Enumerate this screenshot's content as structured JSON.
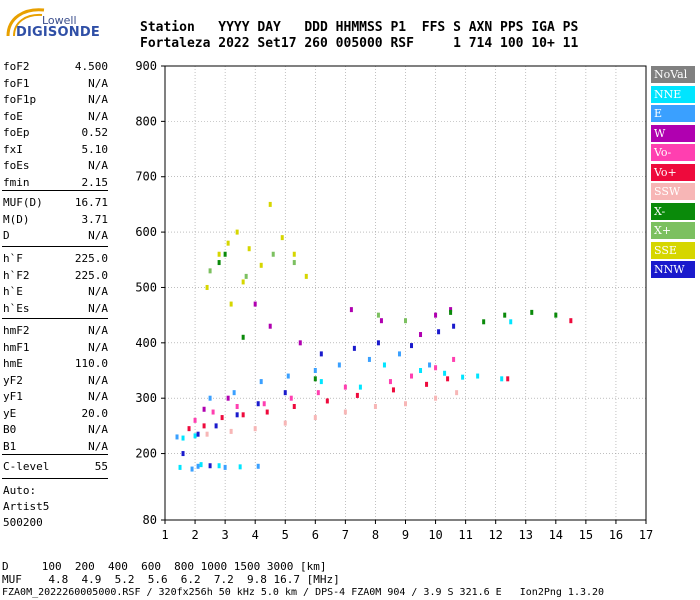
{
  "logo": {
    "line1": "Lowell",
    "line2": "DIGISONDE"
  },
  "header": {
    "line1": "Station   YYYY DAY   DDD HHMMSS P1  FFS S AXN PPS IGA PS",
    "line2": "Fortaleza 2022 Set17 260 005000 RSF     1 714 100 10+ 11"
  },
  "params_a": [
    {
      "label": "foF2",
      "value": "4.500"
    },
    {
      "label": "foF1",
      "value": "N/A"
    },
    {
      "label": "foF1p",
      "value": "N/A"
    },
    {
      "label": "foE",
      "value": "N/A"
    },
    {
      "label": "foEp",
      "value": "0.52"
    },
    {
      "label": "fxI",
      "value": "5.10"
    },
    {
      "label": "foEs",
      "value": "N/A"
    },
    {
      "label": "fmin",
      "value": "2.15"
    }
  ],
  "params_b": [
    {
      "label": "MUF(D)",
      "value": "16.71"
    },
    {
      "label": "M(D)",
      "value": "3.71"
    },
    {
      "label": "D",
      "value": "N/A"
    }
  ],
  "params_c": [
    {
      "label": "h`F",
      "value": "225.0"
    },
    {
      "label": "h`F2",
      "value": "225.0"
    },
    {
      "label": "h`E",
      "value": "N/A"
    },
    {
      "label": "h`Es",
      "value": "N/A"
    }
  ],
  "params_d": [
    {
      "label": "hmF2",
      "value": "N/A"
    },
    {
      "label": "hmF1",
      "value": "N/A"
    },
    {
      "label": "hmE",
      "value": "110.0"
    },
    {
      "label": "yF2",
      "value": "N/A"
    },
    {
      "label": "yF1",
      "value": "N/A"
    },
    {
      "label": "yE",
      "value": "20.0"
    },
    {
      "label": "B0",
      "value": "N/A"
    },
    {
      "label": "B1",
      "value": "N/A"
    }
  ],
  "params_e": [
    {
      "label": "C-level",
      "value": "55"
    }
  ],
  "auto": {
    "line1": "Auto:",
    "line2": "Artist5",
    "line3": "500200"
  },
  "legend": [
    {
      "label": "NoVal",
      "color": "#808080"
    },
    {
      "label": "NNE",
      "color": "#00e5ff"
    },
    {
      "label": "E",
      "color": "#3aa0ff"
    },
    {
      "label": "W",
      "color": "#b000b0"
    },
    {
      "label": "Vo-",
      "color": "#ff3fb0"
    },
    {
      "label": "Vo+",
      "color": "#ee0a3c"
    },
    {
      "label": "SSW",
      "color": "#f7b6b6"
    },
    {
      "label": "X-",
      "color": "#0a8a0a"
    },
    {
      "label": "X+",
      "color": "#7cc060"
    },
    {
      "label": "SSE",
      "color": "#d6d600"
    },
    {
      "label": "NNW",
      "color": "#1a1acc"
    }
  ],
  "footer": {
    "line1": "D     100  200  400  600  800 1000 1500 3000 [km]",
    "line2": "MUF    4.8  4.9  5.2  5.6  6.2  7.2  9.8 16.7 [MHz]",
    "line3": "FZA0M_2022260005000.RSF / 320fx256h 50 kHz 5.0 km / DPS-4 FZA0M 904 / 3.9 S 321.6 E   Ion2Png 1.3.20"
  },
  "chart_data": {
    "type": "scatter",
    "xlim": [
      1,
      17
    ],
    "ylim": [
      80,
      900
    ],
    "x_ticks": [
      "1",
      "2",
      "3",
      "4",
      "5",
      "6",
      "7",
      "8",
      "9",
      "10",
      "11",
      "12",
      "13",
      "14",
      "15",
      "16",
      "17"
    ],
    "y_ticks": [
      "80",
      "200",
      "300",
      "400",
      "500",
      "600",
      "700",
      "800",
      "900"
    ],
    "grid": true,
    "series": [
      {
        "name": "NNE",
        "color": "#00e5ff",
        "points": [
          [
            1.5,
            175
          ],
          [
            2.2,
            180
          ],
          [
            2.8,
            178
          ],
          [
            3.5,
            176
          ],
          [
            6.2,
            330
          ],
          [
            7.5,
            320
          ],
          [
            8.3,
            360
          ],
          [
            9.5,
            350
          ],
          [
            10.3,
            345
          ],
          [
            10.9,
            338
          ],
          [
            11.4,
            340
          ],
          [
            12.2,
            335
          ],
          [
            12.5,
            438
          ],
          [
            1.6,
            228
          ],
          [
            2.0,
            232
          ]
        ]
      },
      {
        "name": "E",
        "color": "#3aa0ff",
        "points": [
          [
            1.4,
            230
          ],
          [
            2.5,
            300
          ],
          [
            3.3,
            310
          ],
          [
            4.2,
            330
          ],
          [
            5.1,
            340
          ],
          [
            6.0,
            350
          ],
          [
            6.8,
            360
          ],
          [
            7.8,
            370
          ],
          [
            8.8,
            380
          ],
          [
            9.8,
            360
          ],
          [
            2.1,
            177
          ],
          [
            3.0,
            175
          ],
          [
            4.1,
            177
          ],
          [
            1.9,
            172
          ]
        ]
      },
      {
        "name": "W",
        "color": "#b000b0",
        "points": [
          [
            4.0,
            470
          ],
          [
            4.5,
            430
          ],
          [
            5.5,
            400
          ],
          [
            7.2,
            460
          ],
          [
            8.2,
            440
          ],
          [
            9.5,
            415
          ],
          [
            10.0,
            450
          ],
          [
            10.5,
            460
          ],
          [
            2.3,
            280
          ],
          [
            3.1,
            300
          ]
        ]
      },
      {
        "name": "Vo-",
        "color": "#ff3fb0",
        "points": [
          [
            2.0,
            260
          ],
          [
            2.6,
            275
          ],
          [
            3.4,
            285
          ],
          [
            4.3,
            290
          ],
          [
            5.2,
            300
          ],
          [
            6.1,
            310
          ],
          [
            7.0,
            320
          ],
          [
            8.5,
            330
          ],
          [
            9.2,
            340
          ],
          [
            10.0,
            355
          ],
          [
            10.6,
            370
          ]
        ]
      },
      {
        "name": "Vo+",
        "color": "#ee0a3c",
        "points": [
          [
            1.8,
            245
          ],
          [
            2.3,
            250
          ],
          [
            2.9,
            265
          ],
          [
            3.6,
            270
          ],
          [
            4.4,
            275
          ],
          [
            5.3,
            285
          ],
          [
            6.4,
            295
          ],
          [
            7.4,
            305
          ],
          [
            8.6,
            315
          ],
          [
            9.7,
            325
          ],
          [
            10.4,
            335
          ],
          [
            12.4,
            335
          ],
          [
            14.5,
            440
          ]
        ]
      },
      {
        "name": "SSW",
        "color": "#f7b6b6",
        "points": [
          [
            2.4,
            235
          ],
          [
            3.2,
            240
          ],
          [
            4.0,
            245
          ],
          [
            5.0,
            255
          ],
          [
            6.0,
            265
          ],
          [
            7.0,
            275
          ],
          [
            8.0,
            285
          ],
          [
            9.0,
            290
          ],
          [
            10.0,
            300
          ],
          [
            10.7,
            310
          ]
        ]
      },
      {
        "name": "X-",
        "color": "#0a8a0a",
        "points": [
          [
            2.8,
            545
          ],
          [
            3.0,
            560
          ],
          [
            3.6,
            410
          ],
          [
            6.0,
            335
          ],
          [
            10.5,
            455
          ],
          [
            11.6,
            438
          ],
          [
            12.3,
            450
          ],
          [
            13.2,
            455
          ],
          [
            14.0,
            450
          ]
        ]
      },
      {
        "name": "X+",
        "color": "#7cc060",
        "points": [
          [
            2.5,
            530
          ],
          [
            3.7,
            520
          ],
          [
            4.6,
            560
          ],
          [
            5.3,
            545
          ],
          [
            8.1,
            450
          ],
          [
            9.0,
            440
          ]
        ]
      },
      {
        "name": "SSE",
        "color": "#d6d600",
        "points": [
          [
            2.4,
            500
          ],
          [
            2.8,
            560
          ],
          [
            3.1,
            580
          ],
          [
            3.4,
            600
          ],
          [
            3.8,
            570
          ],
          [
            4.2,
            540
          ],
          [
            4.5,
            650
          ],
          [
            4.9,
            590
          ],
          [
            5.3,
            560
          ],
          [
            5.7,
            520
          ],
          [
            3.2,
            470
          ],
          [
            3.6,
            510
          ]
        ]
      },
      {
        "name": "NNW",
        "color": "#1a1acc",
        "points": [
          [
            1.6,
            200
          ],
          [
            2.1,
            235
          ],
          [
            2.7,
            250
          ],
          [
            3.4,
            270
          ],
          [
            4.1,
            290
          ],
          [
            5.0,
            310
          ],
          [
            6.2,
            380
          ],
          [
            7.3,
            390
          ],
          [
            8.1,
            400
          ],
          [
            9.2,
            395
          ],
          [
            10.1,
            420
          ],
          [
            10.6,
            430
          ],
          [
            2.5,
            178
          ]
        ]
      }
    ]
  }
}
